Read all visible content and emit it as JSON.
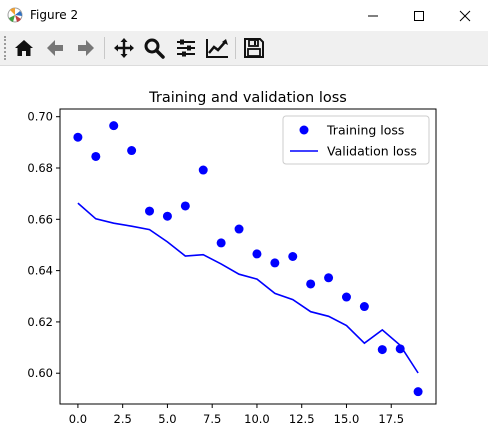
{
  "window": {
    "title": "Figure 2"
  },
  "window_controls": {
    "minimize_icon": "minimize-icon",
    "maximize_icon": "maximize-icon",
    "close_icon": "close-icon"
  },
  "toolbar": {
    "items": [
      {
        "name": "home-icon",
        "meaning": "Reset original view"
      },
      {
        "name": "back-arrow-icon",
        "meaning": "Back"
      },
      {
        "name": "forward-arrow-icon",
        "meaning": "Forward"
      },
      {
        "name": "pan-icon",
        "meaning": "Pan"
      },
      {
        "name": "zoom-icon",
        "meaning": "Zoom"
      },
      {
        "name": "subplots-icon",
        "meaning": "Configure subplots"
      },
      {
        "name": "edit-axes-icon",
        "meaning": "Edit axis"
      },
      {
        "name": "save-icon",
        "meaning": "Save"
      }
    ]
  },
  "chart_data": {
    "type": "scatter",
    "title": "Training and validation loss",
    "xlabel": "",
    "ylabel": "",
    "xlim": [
      -1,
      20
    ],
    "ylim": [
      0.588,
      0.703
    ],
    "xticks": [
      0,
      2.5,
      5,
      7.5,
      10,
      12.5,
      15,
      17.5
    ],
    "xtick_labels": [
      "0.0",
      "2.5",
      "5.0",
      "7.5",
      "10.0",
      "12.5",
      "15.0",
      "17.5"
    ],
    "yticks": [
      0.6,
      0.62,
      0.64,
      0.66,
      0.68,
      0.7
    ],
    "ytick_labels": [
      "0.60",
      "0.62",
      "0.64",
      "0.66",
      "0.68",
      "0.70"
    ],
    "grid": false,
    "legend_position": "top-right",
    "series": [
      {
        "name": "Training loss",
        "style": "points",
        "color": "#0000ff",
        "x": [
          0,
          1,
          2,
          3,
          4,
          5,
          6,
          7,
          8,
          9,
          10,
          11,
          12,
          13,
          14,
          15,
          16,
          17,
          18,
          19
        ],
        "y": [
          0.692,
          0.6845,
          0.6965,
          0.6868,
          0.6632,
          0.6612,
          0.6652,
          0.6792,
          0.6508,
          0.6562,
          0.6465,
          0.643,
          0.6455,
          0.6348,
          0.6372,
          0.6297,
          0.626,
          0.6092,
          0.6095,
          0.5928
        ]
      },
      {
        "name": "Validation loss",
        "style": "line",
        "color": "#0000ff",
        "x": [
          0,
          1,
          2,
          3,
          4,
          5,
          6,
          7,
          8,
          9,
          10,
          11,
          12,
          13,
          14,
          15,
          16,
          17,
          18,
          19
        ],
        "y": [
          0.6663,
          0.6602,
          0.6585,
          0.6573,
          0.656,
          0.6512,
          0.6457,
          0.6462,
          0.6426,
          0.6386,
          0.6367,
          0.6311,
          0.6287,
          0.624,
          0.6222,
          0.6186,
          0.6117,
          0.6169,
          0.6109,
          0.6001
        ]
      }
    ]
  }
}
